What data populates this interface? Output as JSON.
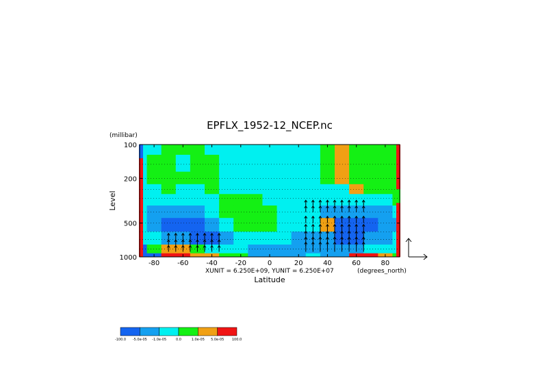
{
  "chart_data": {
    "type": "heatmap",
    "title": "EPFLX_1952-12_NCEP.nc",
    "xlabel": "Latitude",
    "ylabel": "Level",
    "yunit_label": "(millibar)",
    "xunit_suffix": "(degrees_north)",
    "scale_note": "XUNIT = 6.250E+09, YUNIT = 6.250E+07",
    "xlim": [
      -90,
      90
    ],
    "ylim": [
      1000,
      100
    ],
    "y_scale": "log",
    "x_ticks": [
      -80,
      -60,
      -40,
      -20,
      0,
      20,
      40,
      60,
      80
    ],
    "y_ticks": [
      100,
      200,
      500,
      1000
    ],
    "colorbar": {
      "labels": [
        "-100.0",
        "-5.0e-05",
        "-1.0e-05",
        "0.0",
        "1.0e-05",
        "5.0e-05",
        "100.0"
      ],
      "colors": [
        "#1464f0",
        "#14a0f0",
        "#00f0f0",
        "#14f014",
        "#f0a014",
        "#f01414"
      ]
    },
    "levels": [
      1000,
      850,
      700,
      500,
      400,
      300,
      250,
      200,
      150,
      100
    ],
    "contour_field": {
      "lats": [
        -90,
        -80,
        -70,
        -60,
        -50,
        -40,
        -30,
        -20,
        -10,
        0,
        10,
        20,
        30,
        40,
        50,
        60,
        70,
        80,
        90
      ],
      "category_rows_by_level": [
        [
          0,
          0,
          5,
          5,
          4,
          4,
          3,
          3,
          1,
          1,
          1,
          1,
          2,
          1,
          1,
          5,
          5,
          4,
          3
        ],
        [
          0,
          3,
          4,
          4,
          3,
          2,
          2,
          2,
          1,
          1,
          1,
          1,
          1,
          1,
          1,
          1,
          2,
          2,
          2
        ],
        [
          2,
          2,
          1,
          1,
          0,
          0,
          1,
          2,
          2,
          2,
          2,
          1,
          1,
          1,
          0,
          0,
          1,
          1,
          2
        ],
        [
          2,
          1,
          0,
          0,
          0,
          1,
          2,
          3,
          3,
          3,
          2,
          2,
          2,
          4,
          0,
          0,
          0,
          1,
          1
        ],
        [
          2,
          1,
          1,
          1,
          1,
          2,
          3,
          3,
          3,
          3,
          2,
          2,
          2,
          1,
          1,
          1,
          1,
          1,
          2
        ],
        [
          2,
          2,
          2,
          2,
          2,
          2,
          3,
          3,
          3,
          2,
          2,
          2,
          2,
          2,
          2,
          2,
          2,
          2,
          3
        ],
        [
          2,
          2,
          3,
          2,
          2,
          3,
          2,
          2,
          2,
          2,
          2,
          2,
          2,
          2,
          2,
          4,
          3,
          3,
          3
        ],
        [
          2,
          3,
          3,
          3,
          3,
          3,
          2,
          2,
          2,
          2,
          2,
          2,
          2,
          3,
          4,
          3,
          3,
          3,
          3
        ],
        [
          2,
          3,
          3,
          2,
          3,
          3,
          2,
          2,
          2,
          2,
          2,
          2,
          2,
          3,
          4,
          3,
          3,
          3,
          3
        ],
        [
          2,
          2,
          3,
          3,
          3,
          2,
          2,
          2,
          2,
          2,
          2,
          2,
          2,
          3,
          4,
          3,
          3,
          3,
          3
        ]
      ]
    },
    "ep_flux_vectors": {
      "lats": [
        -70,
        -65,
        -60,
        -55,
        -50,
        -45,
        -40,
        -35,
        25,
        30,
        35,
        40,
        45,
        50,
        55,
        60,
        65
      ],
      "note": "upward-pointing vectors concentrated at 25N-65N between 1000 and 300 mb and at 70S-35S below 500 mb"
    }
  }
}
